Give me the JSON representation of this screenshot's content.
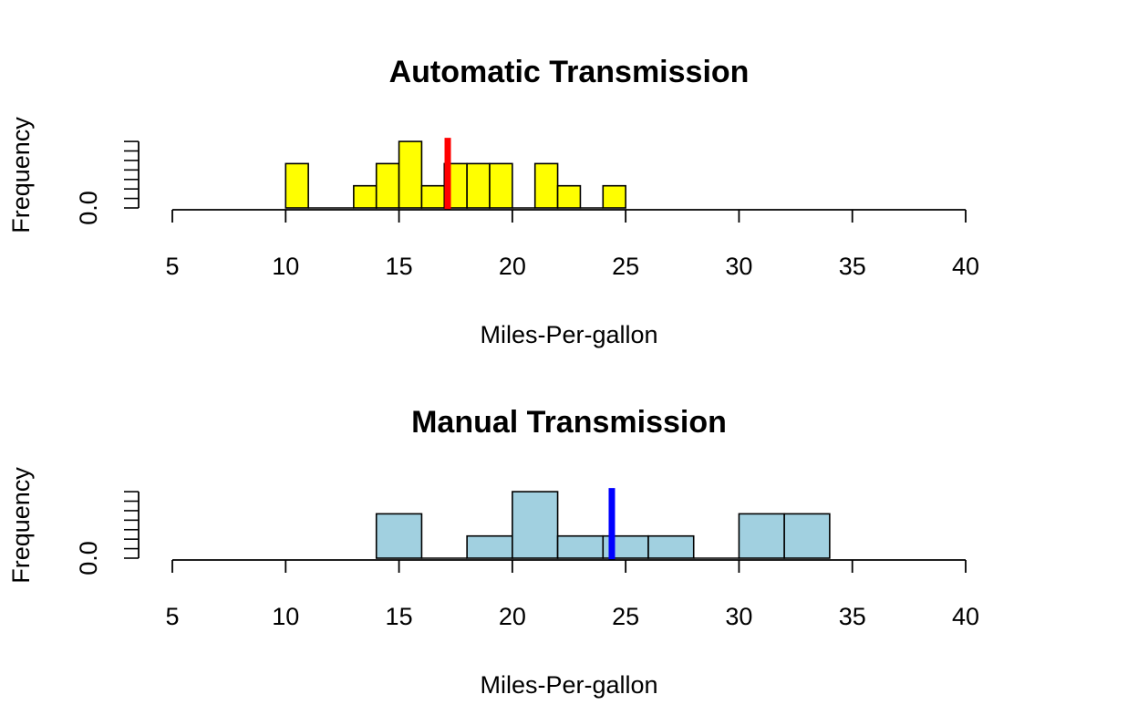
{
  "chart_data": [
    {
      "type": "bar",
      "title": "Automatic Transmission",
      "xlabel": "Miles-Per-gallon",
      "ylabel": "Frequency",
      "xlim": [
        5,
        40
      ],
      "x_ticks": [
        5,
        10,
        15,
        20,
        25,
        30,
        35,
        40
      ],
      "y_ticks": [
        0,
        1,
        2,
        3
      ],
      "y_tick_labels": [
        "0.0",
        "",
        "",
        ""
      ],
      "bin_width": 1,
      "bins": [
        {
          "start": 10,
          "count": 2
        },
        {
          "start": 11,
          "count": 0
        },
        {
          "start": 12,
          "count": 0
        },
        {
          "start": 13,
          "count": 1
        },
        {
          "start": 14,
          "count": 2
        },
        {
          "start": 15,
          "count": 3
        },
        {
          "start": 16,
          "count": 1
        },
        {
          "start": 17,
          "count": 2
        },
        {
          "start": 18,
          "count": 2
        },
        {
          "start": 19,
          "count": 2
        },
        {
          "start": 20,
          "count": 0
        },
        {
          "start": 21,
          "count": 2
        },
        {
          "start": 22,
          "count": 1
        },
        {
          "start": 23,
          "count": 0
        },
        {
          "start": 24,
          "count": 1
        }
      ],
      "fill_color": "#ffff00",
      "mean_line": {
        "x": 17.15,
        "color": "#ff0000"
      }
    },
    {
      "type": "bar",
      "title": "Manual Transmission",
      "xlabel": "Miles-Per-gallon",
      "ylabel": "Frequency",
      "xlim": [
        5,
        40
      ],
      "x_ticks": [
        5,
        10,
        15,
        20,
        25,
        30,
        35,
        40
      ],
      "y_ticks": [
        0,
        1,
        2,
        3
      ],
      "y_tick_labels": [
        "0.0",
        "",
        "",
        ""
      ],
      "bin_width": 2,
      "bins": [
        {
          "start": 14,
          "count": 2
        },
        {
          "start": 16,
          "count": 0
        },
        {
          "start": 18,
          "count": 1
        },
        {
          "start": 20,
          "count": 3
        },
        {
          "start": 22,
          "count": 1
        },
        {
          "start": 24,
          "count": 1
        },
        {
          "start": 26,
          "count": 1
        },
        {
          "start": 28,
          "count": 0
        },
        {
          "start": 30,
          "count": 2
        },
        {
          "start": 32,
          "count": 2
        }
      ],
      "fill_color": "#a1d0e0",
      "mean_line": {
        "x": 24.39,
        "color": "#0000ff"
      }
    }
  ]
}
